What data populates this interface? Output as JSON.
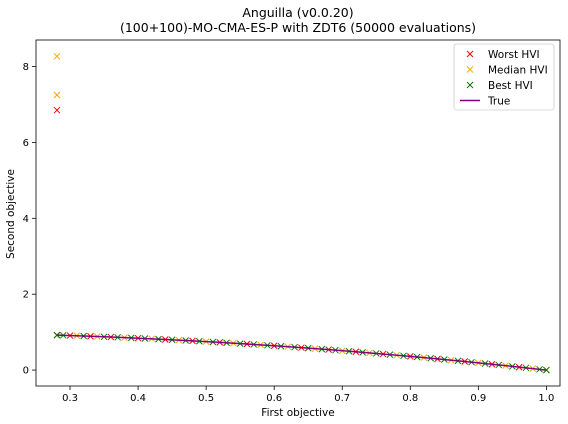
{
  "chart_data": {
    "type": "scatter",
    "title_lines": [
      "Anguilla (v0.0.20)",
      "(100+100)-MO-CMA-ES-P with ZDT6 (50000 evaluations)"
    ],
    "xlabel": "First objective",
    "ylabel": "Second objective",
    "xlim": [
      0.25,
      1.02
    ],
    "ylim": [
      -0.42,
      8.7
    ],
    "xticks": [
      "0.3",
      "0.4",
      "0.5",
      "0.6",
      "0.7",
      "0.8",
      "0.9",
      "1.0"
    ],
    "yticks": [
      "0",
      "2",
      "4",
      "6",
      "8"
    ],
    "legend_position": "upper-right",
    "series": [
      {
        "name": "Worst HVI",
        "marker": "x",
        "color": "#ff0000",
        "x": [
          0.2808,
          0.2808,
          0.3,
          0.33,
          0.36,
          0.4,
          0.44,
          0.48,
          0.52,
          0.56,
          0.6,
          0.64,
          0.68,
          0.72,
          0.76,
          0.8,
          0.84,
          0.88,
          0.92,
          0.96,
          1.0
        ],
        "y": [
          6.85,
          0.921,
          0.91,
          0.891,
          0.87,
          0.84,
          0.806,
          0.77,
          0.73,
          0.686,
          0.64,
          0.59,
          0.538,
          0.482,
          0.422,
          0.36,
          0.294,
          0.226,
          0.154,
          0.078,
          0.0
        ]
      },
      {
        "name": "Median HVI",
        "marker": "x",
        "color": "#ffa500",
        "x": [
          0.2808,
          0.2808,
          0.2808,
          0.31,
          0.34,
          0.38,
          0.42,
          0.46,
          0.5,
          0.54,
          0.58,
          0.62,
          0.66,
          0.7,
          0.74,
          0.78,
          0.82,
          0.86,
          0.9,
          0.94,
          0.98,
          1.0
        ],
        "y": [
          8.27,
          7.25,
          0.921,
          0.904,
          0.884,
          0.856,
          0.824,
          0.789,
          0.75,
          0.708,
          0.664,
          0.616,
          0.564,
          0.51,
          0.452,
          0.392,
          0.328,
          0.26,
          0.19,
          0.116,
          0.04,
          0.0
        ]
      },
      {
        "name": "Best HVI",
        "marker": "x",
        "color": "#008000",
        "x": [
          0.2808,
          0.29,
          0.32,
          0.35,
          0.37,
          0.39,
          0.41,
          0.43,
          0.45,
          0.47,
          0.49,
          0.51,
          0.53,
          0.55,
          0.57,
          0.59,
          0.61,
          0.63,
          0.65,
          0.67,
          0.69,
          0.71,
          0.73,
          0.75,
          0.77,
          0.79,
          0.81,
          0.83,
          0.85,
          0.87,
          0.89,
          0.91,
          0.93,
          0.95,
          0.97,
          0.99,
          1.0
        ],
        "y": [
          0.921,
          0.916,
          0.898,
          0.877,
          0.863,
          0.848,
          0.832,
          0.815,
          0.798,
          0.779,
          0.76,
          0.74,
          0.719,
          0.698,
          0.675,
          0.652,
          0.628,
          0.603,
          0.578,
          0.551,
          0.524,
          0.496,
          0.467,
          0.438,
          0.407,
          0.376,
          0.344,
          0.311,
          0.278,
          0.243,
          0.208,
          0.172,
          0.135,
          0.098,
          0.059,
          0.02,
          0.0
        ]
      },
      {
        "name": "True",
        "marker": "line",
        "color": "#800080",
        "x": [
          0.2808,
          0.32,
          0.36,
          0.4,
          0.44,
          0.48,
          0.52,
          0.56,
          0.6,
          0.64,
          0.68,
          0.72,
          0.76,
          0.8,
          0.84,
          0.88,
          0.92,
          0.96,
          1.0
        ],
        "y": [
          0.921,
          0.898,
          0.87,
          0.84,
          0.806,
          0.77,
          0.73,
          0.686,
          0.64,
          0.59,
          0.538,
          0.482,
          0.422,
          0.36,
          0.294,
          0.226,
          0.154,
          0.078,
          0.0
        ]
      }
    ]
  }
}
